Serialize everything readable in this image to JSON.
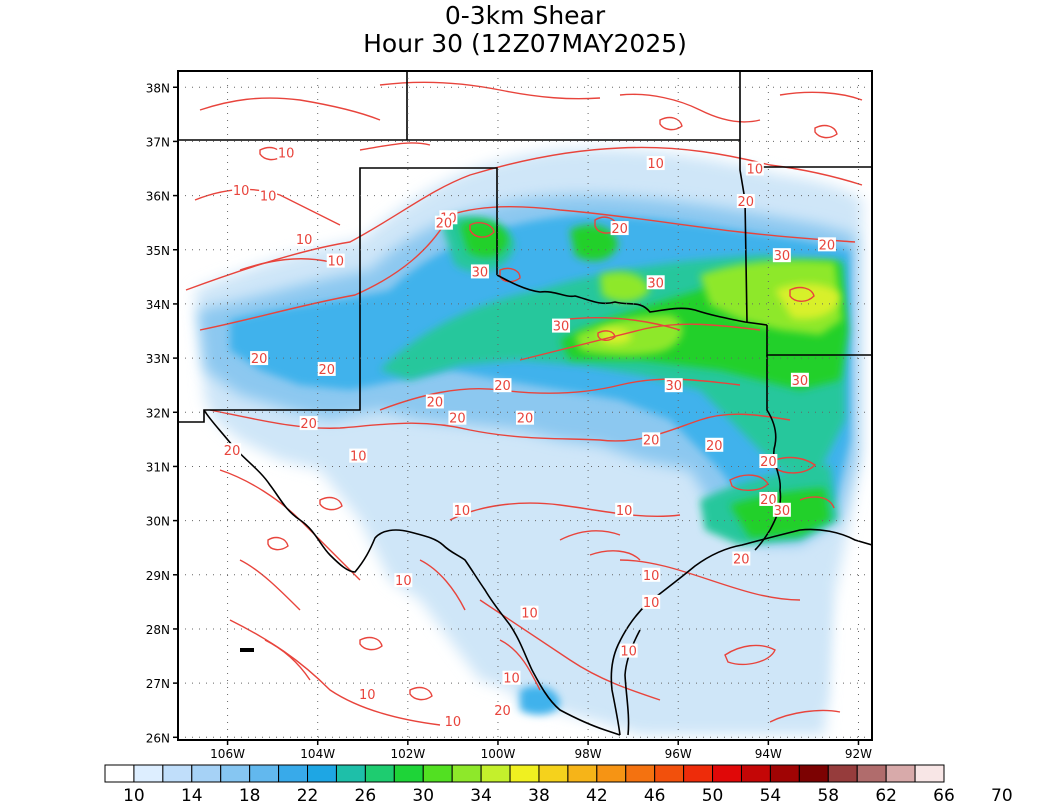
{
  "title": {
    "line1": "0-3km Shear",
    "line2": "Hour 30 (12Z07MAY2025)"
  },
  "map": {
    "lat_labels": [
      "38N",
      "37N",
      "36N",
      "35N",
      "34N",
      "33N",
      "32N",
      "31N",
      "30N",
      "29N",
      "28N",
      "27N",
      "26N"
    ],
    "lon_labels": [
      "106W",
      "104W",
      "102W",
      "100W",
      "98W",
      "96W",
      "94W",
      "92W"
    ],
    "field_colors": {
      "light": "#cfe6f8",
      "medium": "#8cc8f0",
      "strong": "#3fb2ec",
      "teal": "#27c79c",
      "green": "#22d02a",
      "lime": "#8ee82a",
      "yellow": "#d8f02c",
      "contour": "#e8443c",
      "border": "#000000"
    },
    "contour_labels": [
      {
        "text": "10",
        "lon": -104.7,
        "lat": 36.8
      },
      {
        "text": "10",
        "lon": -105.7,
        "lat": 36.1
      },
      {
        "text": "10",
        "lon": -105.1,
        "lat": 36.0
      },
      {
        "text": "10",
        "lon": -104.3,
        "lat": 35.2
      },
      {
        "text": "10",
        "lon": -103.6,
        "lat": 34.8
      },
      {
        "text": "10",
        "lon": -101.1,
        "lat": 35.6
      },
      {
        "text": "20",
        "lon": -101.2,
        "lat": 35.5
      },
      {
        "text": "30",
        "lon": -100.4,
        "lat": 34.6
      },
      {
        "text": "10",
        "lon": -96.5,
        "lat": 36.6
      },
      {
        "text": "10",
        "lon": -94.3,
        "lat": 36.5
      },
      {
        "text": "20",
        "lon": -97.3,
        "lat": 35.4
      },
      {
        "text": "20",
        "lon": -94.5,
        "lat": 35.9
      },
      {
        "text": "30",
        "lon": -96.5,
        "lat": 34.4
      },
      {
        "text": "30",
        "lon": -93.7,
        "lat": 34.9
      },
      {
        "text": "20",
        "lon": -92.7,
        "lat": 35.1
      },
      {
        "text": "30",
        "lon": -98.6,
        "lat": 33.6
      },
      {
        "text": "30",
        "lon": -96.1,
        "lat": 32.5
      },
      {
        "text": "30",
        "lon": -93.3,
        "lat": 32.6
      },
      {
        "text": "20",
        "lon": -105.3,
        "lat": 33.0
      },
      {
        "text": "20",
        "lon": -103.8,
        "lat": 32.8
      },
      {
        "text": "20",
        "lon": -99.9,
        "lat": 32.5
      },
      {
        "text": "20",
        "lon": -101.4,
        "lat": 32.2
      },
      {
        "text": "20",
        "lon": -100.9,
        "lat": 31.9
      },
      {
        "text": "20",
        "lon": -99.4,
        "lat": 31.9
      },
      {
        "text": "20",
        "lon": -104.2,
        "lat": 31.8
      },
      {
        "text": "20",
        "lon": -105.9,
        "lat": 31.3
      },
      {
        "text": "20",
        "lon": -96.6,
        "lat": 31.5
      },
      {
        "text": "20",
        "lon": -95.2,
        "lat": 31.4
      },
      {
        "text": "20",
        "lon": -94.0,
        "lat": 31.1
      },
      {
        "text": "10",
        "lon": -103.1,
        "lat": 31.2
      },
      {
        "text": "10",
        "lon": -100.8,
        "lat": 30.2
      },
      {
        "text": "10",
        "lon": -97.2,
        "lat": 30.2
      },
      {
        "text": "20",
        "lon": -94.0,
        "lat": 30.4
      },
      {
        "text": "30",
        "lon": -93.7,
        "lat": 30.2
      },
      {
        "text": "20",
        "lon": -94.6,
        "lat": 29.3
      },
      {
        "text": "10",
        "lon": -102.1,
        "lat": 28.9
      },
      {
        "text": "10",
        "lon": -96.6,
        "lat": 29.0
      },
      {
        "text": "10",
        "lon": -96.6,
        "lat": 28.5
      },
      {
        "text": "10",
        "lon": -99.3,
        "lat": 28.3
      },
      {
        "text": "10",
        "lon": -99.7,
        "lat": 27.1
      },
      {
        "text": "10",
        "lon": -97.1,
        "lat": 27.6
      },
      {
        "text": "10",
        "lon": -102.9,
        "lat": 26.8
      },
      {
        "text": "10",
        "lon": -101.0,
        "lat": 26.3
      },
      {
        "text": "20",
        "lon": -99.9,
        "lat": 26.5
      }
    ]
  },
  "colorbar": {
    "colors": [
      "#ffffff",
      "#ddeeff",
      "#c0defa",
      "#a6d2f6",
      "#86c6f2",
      "#62b8ee",
      "#38aaea",
      "#1ea6e4",
      "#1ebfa9",
      "#1ecc70",
      "#1ed438",
      "#52e022",
      "#8ee82a",
      "#c4f02c",
      "#f0f020",
      "#f5d21c",
      "#f6b418",
      "#f69414",
      "#f47210",
      "#f2500c",
      "#ee2c0a",
      "#e00808",
      "#c40606",
      "#a00404",
      "#7c0202",
      "#963c3c",
      "#b06c6c",
      "#d8aaaa",
      "#f8e6e6"
    ],
    "labels": [
      "10",
      "14",
      "18",
      "22",
      "26",
      "30",
      "34",
      "38",
      "42",
      "46",
      "50",
      "54",
      "58",
      "62",
      "66",
      "70"
    ]
  }
}
